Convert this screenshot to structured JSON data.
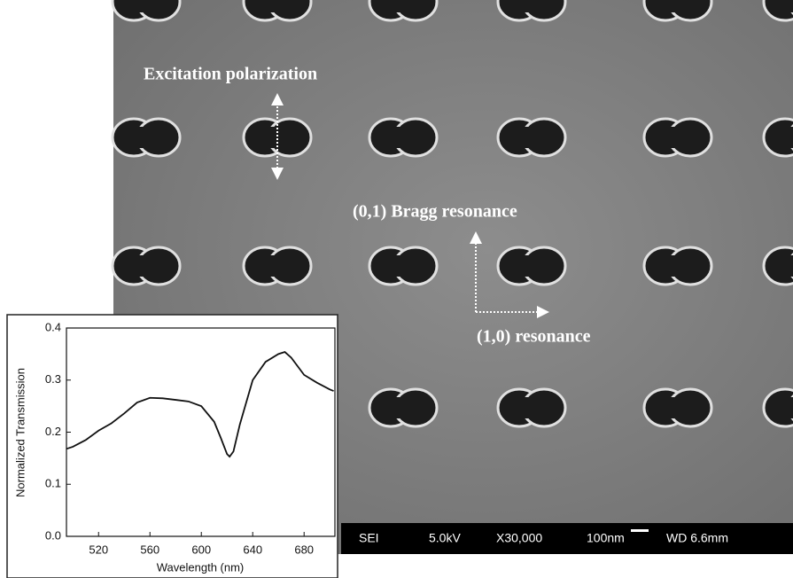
{
  "sem_image": {
    "annotations": [
      "Excitation polarization",
      "(0,1) Bragg resonance",
      "(1,0) resonance"
    ],
    "info_bar": [
      "SEI",
      "5.0kV",
      "X30,000",
      "100nm",
      "WD 6.6mm"
    ]
  },
  "chart_data": {
    "type": "line",
    "x_label": "Wavelength (nm)",
    "y_label": "Normalized Transmission",
    "x": [
      495,
      500,
      510,
      520,
      530,
      540,
      550,
      560,
      570,
      580,
      590,
      600,
      610,
      615,
      620,
      622,
      625,
      630,
      640,
      650,
      660,
      665,
      670,
      680,
      690,
      700,
      703
    ],
    "values": [
      0.168,
      0.172,
      0.185,
      0.203,
      0.217,
      0.236,
      0.257,
      0.266,
      0.265,
      0.262,
      0.259,
      0.25,
      0.22,
      0.19,
      0.158,
      0.153,
      0.163,
      0.215,
      0.3,
      0.335,
      0.35,
      0.354,
      0.343,
      0.31,
      0.295,
      0.282,
      0.279
    ],
    "color": "#111111",
    "xlim": [
      495,
      704
    ],
    "ylim": [
      0,
      0.4
    ],
    "xticks": [
      520,
      560,
      600,
      640,
      680
    ],
    "yticks": [
      {
        "value": 0,
        "label": "0.0"
      },
      0.1,
      0.2,
      0.3,
      0.4
    ]
  }
}
